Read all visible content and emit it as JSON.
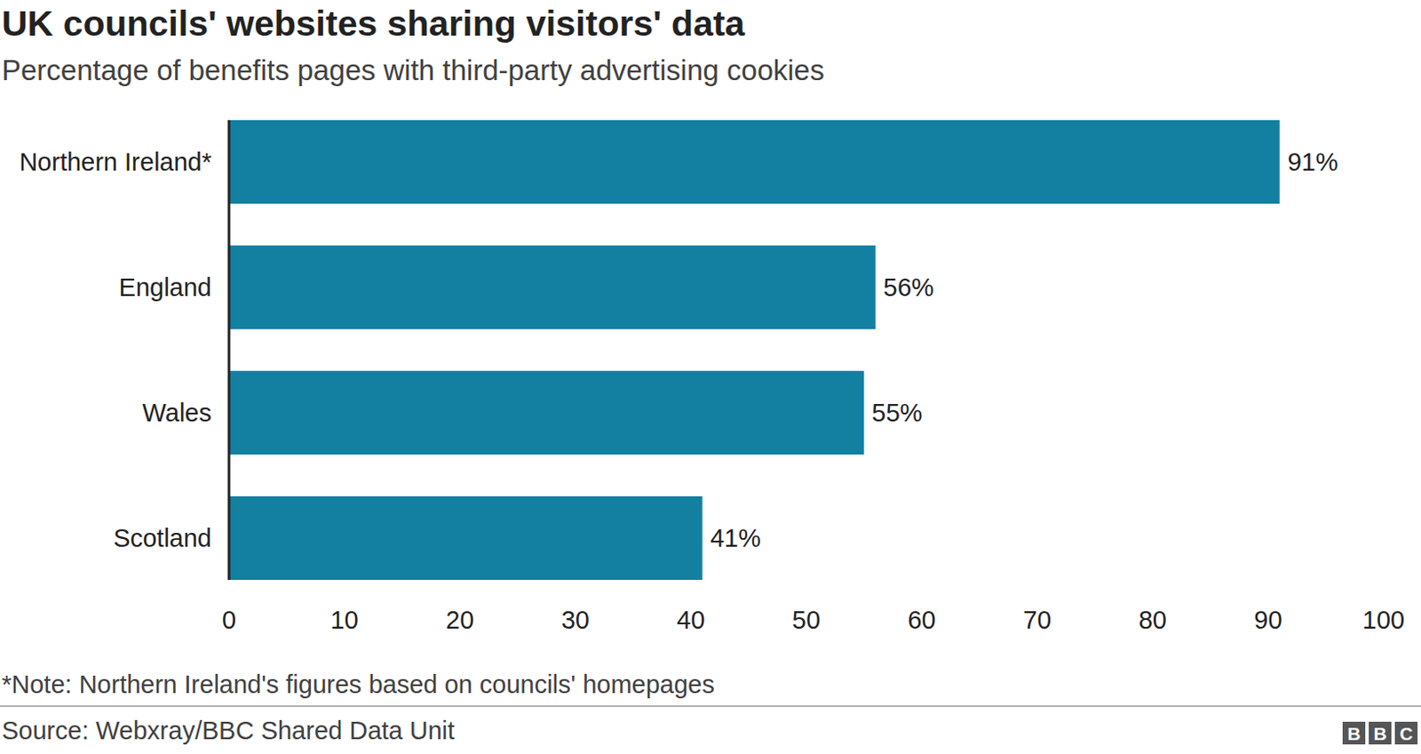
{
  "chart_data": {
    "type": "bar",
    "orientation": "horizontal",
    "title": "UK councils' websites sharing visitors' data",
    "subtitle": "Percentage of benefits pages with third-party advertising cookies",
    "categories": [
      "Northern Ireland*",
      "England",
      "Wales",
      "Scotland"
    ],
    "values": [
      91,
      56,
      55,
      41
    ],
    "value_labels": [
      "91%",
      "56%",
      "55%",
      "41%"
    ],
    "color": "#1380a1",
    "ylim": [
      0,
      100
    ],
    "yticks": [
      0,
      10,
      20,
      30,
      40,
      50,
      60,
      70,
      80,
      90,
      100
    ],
    "grid": false,
    "data_labels": true,
    "note": "*Note: Northern Ireland's figures based on councils' homepages",
    "source": "Source: Webxray/BBC Shared Data Unit",
    "logo": "BBC"
  }
}
